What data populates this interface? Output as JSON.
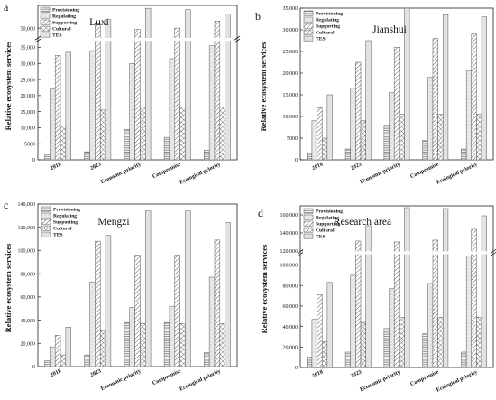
{
  "y_axis_label": "Relative ecosystem services",
  "legend_items": [
    "Provisioning",
    "Regulating",
    "Supporting",
    "Cultural",
    "TES"
  ],
  "categories": [
    "2018",
    "2023",
    "Economic priority",
    "Compromise",
    "Ecological priority"
  ],
  "chart_data": [
    {
      "type": "bar",
      "panel_letter": "a",
      "title": "Luxi",
      "categories": [
        "2018",
        "2023",
        "Economic priority",
        "Compromise",
        "Ecological priority"
      ],
      "axis_break": true,
      "ylim_lower": [
        0,
        37500
      ],
      "ylim_upper": [
        46000,
        58000
      ],
      "yticks_lower": [
        "0",
        "5000",
        "10,000",
        "15,000",
        "20,000",
        "25,000",
        "30,000",
        "35,000"
      ],
      "yticks_upper": [
        "50,000"
      ],
      "series": [
        {
          "name": "Provisioning",
          "values": [
            1500,
            2500,
            9500,
            7000,
            3000
          ]
        },
        {
          "name": "Regulating",
          "values": [
            22000,
            34000,
            30000,
            31500,
            35500
          ]
        },
        {
          "name": "Supporting",
          "values": [
            32500,
            51500,
            49500,
            50000,
            52500
          ]
        },
        {
          "name": "Cultural",
          "values": [
            10500,
            15500,
            16500,
            16500,
            16500
          ]
        },
        {
          "name": "TES",
          "values": [
            33500,
            53000,
            57000,
            56500,
            55000
          ]
        }
      ]
    },
    {
      "type": "bar",
      "panel_letter": "b",
      "title": "Jianshui",
      "categories": [
        "2018",
        "2023",
        "Economic priority",
        "Compromise",
        "Ecological priority"
      ],
      "axis_break": false,
      "ylim": [
        0,
        35000
      ],
      "yticks": [
        "0",
        "5000",
        "10,000",
        "15,000",
        "20,000",
        "25,000",
        "30,000",
        "35,000"
      ],
      "series": [
        {
          "name": "Provisioning",
          "values": [
            1500,
            2500,
            8000,
            4500,
            2500
          ]
        },
        {
          "name": "Regulating",
          "values": [
            9000,
            16500,
            15500,
            19000,
            20500
          ]
        },
        {
          "name": "Supporting",
          "values": [
            12000,
            22500,
            26000,
            28000,
            29000
          ]
        },
        {
          "name": "Cultural",
          "values": [
            5000,
            9000,
            10500,
            10500,
            10500
          ]
        },
        {
          "name": "TES",
          "values": [
            15000,
            27500,
            35000,
            33500,
            33000
          ]
        }
      ]
    },
    {
      "type": "bar",
      "panel_letter": "c",
      "title": "Mengzi",
      "categories": [
        "2018",
        "2023",
        "Economic priority",
        "Compromise",
        "Ecological priority"
      ],
      "axis_break": false,
      "ylim": [
        0,
        140000
      ],
      "yticks": [
        "0",
        "20,000",
        "40,000",
        "60,000",
        "80,000",
        "100,000",
        "120,000",
        "140,000"
      ],
      "series": [
        {
          "name": "Provisioning",
          "values": [
            5000,
            10000,
            38000,
            38000,
            12000
          ]
        },
        {
          "name": "Regulating",
          "values": [
            17000,
            73000,
            51000,
            52000,
            77000
          ]
        },
        {
          "name": "Supporting",
          "values": [
            27000,
            108000,
            96000,
            96000,
            109000
          ]
        },
        {
          "name": "Cultural",
          "values": [
            10000,
            31000,
            37000,
            37000,
            37000
          ]
        },
        {
          "name": "TES",
          "values": [
            34000,
            113000,
            134000,
            134000,
            124000
          ]
        }
      ]
    },
    {
      "type": "bar",
      "panel_letter": "d",
      "title": "Research area",
      "categories": [
        "2018",
        "2023",
        "Economic priority",
        "Compromise",
        "Ecological priority"
      ],
      "axis_break": true,
      "ylim_lower": [
        0,
        112000
      ],
      "ylim_upper": [
        118000,
        170000
      ],
      "yticks_lower": [
        "0",
        "20,000",
        "40,000",
        "60,000",
        "80,000",
        "100,000"
      ],
      "yticks_upper": [
        "120,000",
        "140,000",
        "160,000"
      ],
      "series": [
        {
          "name": "Provisioning",
          "values": [
            10000,
            15000,
            38000,
            33000,
            15000
          ]
        },
        {
          "name": "Regulating",
          "values": [
            47000,
            90000,
            77000,
            82000,
            109000
          ]
        },
        {
          "name": "Supporting",
          "values": [
            71000,
            131000,
            130000,
            132000,
            144000
          ]
        },
        {
          "name": "Cultural",
          "values": [
            25000,
            44000,
            49000,
            49000,
            49000
          ]
        },
        {
          "name": "TES",
          "values": [
            83000,
            148000,
            168000,
            167000,
            159000
          ]
        }
      ]
    }
  ]
}
